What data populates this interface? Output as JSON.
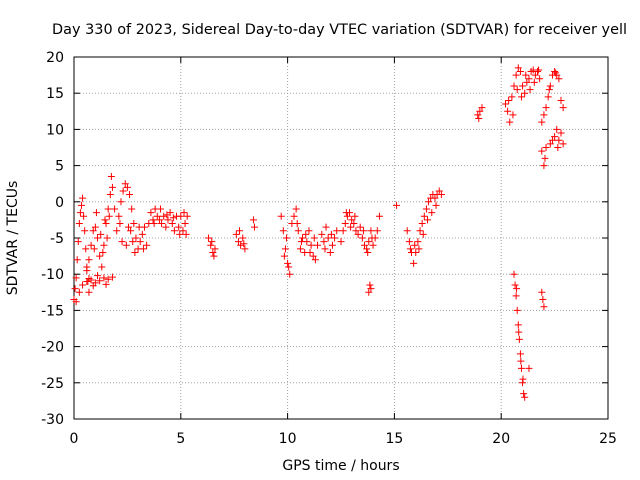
{
  "chart_data": {
    "type": "scatter",
    "title": "Day 330 of 2023, Sidereal Day-to-day VTEC variation (SDTVAR) for receiver yell",
    "xlabel": "GPS time / hours",
    "ylabel": "SDTVAR / TECUs",
    "xlim": [
      0,
      25
    ],
    "ylim": [
      -30,
      20
    ],
    "x_ticks": [
      0,
      5,
      10,
      15,
      20,
      25
    ],
    "y_ticks": [
      -30,
      -25,
      -20,
      -15,
      -10,
      -5,
      0,
      5,
      10,
      15,
      20
    ],
    "grid": true,
    "marker": "+",
    "color": "#ff0000",
    "segments": [
      {
        "name": "segment-01",
        "points": [
          [
            0.0,
            -13.5
          ],
          [
            0.05,
            -12.0
          ],
          [
            0.1,
            -10.5
          ],
          [
            0.15,
            -8.0
          ],
          [
            0.2,
            -5.5
          ],
          [
            0.25,
            -3.0
          ],
          [
            0.3,
            -1.5
          ],
          [
            0.35,
            -0.5
          ],
          [
            0.4,
            0.5
          ],
          [
            0.45,
            -2.0
          ],
          [
            0.5,
            -4.0
          ],
          [
            0.55,
            -6.5
          ],
          [
            0.6,
            -9.0
          ],
          [
            0.65,
            -11.0
          ],
          [
            0.7,
            -12.5
          ]
        ]
      },
      {
        "name": "segment-02",
        "points": [
          [
            0.1,
            -13.8
          ],
          [
            0.25,
            -12.5
          ],
          [
            0.4,
            -11.5
          ],
          [
            0.6,
            -11.0
          ],
          [
            0.8,
            -10.8
          ],
          [
            1.0,
            -11.2
          ],
          [
            1.2,
            -10.9
          ],
          [
            1.4,
            -10.5
          ],
          [
            1.6,
            -10.7
          ],
          [
            1.8,
            -10.4
          ],
          [
            1.5,
            -11.4
          ],
          [
            1.1,
            -10.2
          ],
          [
            0.9,
            -11.6
          ],
          [
            0.7,
            -10.6
          ]
        ]
      },
      {
        "name": "segment-03",
        "points": [
          [
            0.6,
            -9.5
          ],
          [
            0.7,
            -8.0
          ],
          [
            0.8,
            -6.0
          ],
          [
            0.9,
            -4.0
          ],
          [
            1.0,
            -3.5
          ],
          [
            1.1,
            -5.0
          ],
          [
            1.2,
            -7.5
          ],
          [
            1.3,
            -9.0
          ],
          [
            1.4,
            -6.0
          ],
          [
            1.5,
            -3.0
          ],
          [
            1.6,
            -1.0
          ],
          [
            1.7,
            1.0
          ],
          [
            1.75,
            3.5
          ],
          [
            1.8,
            2.0
          ],
          [
            1.9,
            -1.0
          ],
          [
            1.45,
            -2.5
          ],
          [
            1.25,
            -4.5
          ],
          [
            1.05,
            -1.5
          ],
          [
            0.95,
            -6.5
          ],
          [
            1.35,
            -7.0
          ],
          [
            1.55,
            -5.0
          ],
          [
            1.65,
            -2.0
          ]
        ]
      },
      {
        "name": "segment-04",
        "points": [
          [
            2.0,
            -4.0
          ],
          [
            2.1,
            -2.0
          ],
          [
            2.2,
            0.0
          ],
          [
            2.3,
            1.5
          ],
          [
            2.4,
            2.5
          ],
          [
            2.5,
            2.0
          ],
          [
            2.6,
            1.0
          ],
          [
            2.7,
            -1.0
          ],
          [
            2.8,
            -3.0
          ],
          [
            2.9,
            -5.0
          ],
          [
            3.0,
            -6.5
          ],
          [
            3.1,
            -5.5
          ],
          [
            3.2,
            -4.5
          ],
          [
            3.3,
            -3.5
          ],
          [
            3.4,
            -6.0
          ],
          [
            3.5,
            -3.0
          ],
          [
            2.25,
            -5.5
          ],
          [
            2.45,
            -6.0
          ],
          [
            2.65,
            -4.0
          ],
          [
            2.85,
            -7.0
          ],
          [
            2.15,
            -3.0
          ],
          [
            2.55,
            -3.5
          ],
          [
            2.75,
            -5.5
          ],
          [
            3.05,
            -3.5
          ],
          [
            3.25,
            -6.5
          ]
        ]
      },
      {
        "name": "segment-05",
        "points": [
          [
            3.6,
            -1.5
          ],
          [
            3.7,
            -2.5
          ],
          [
            3.8,
            -1.0
          ],
          [
            3.9,
            -2.0
          ],
          [
            4.0,
            -2.5
          ],
          [
            4.1,
            -3.0
          ],
          [
            4.2,
            -2.0
          ],
          [
            4.3,
            -3.5
          ],
          [
            4.4,
            -2.5
          ],
          [
            4.5,
            -1.5
          ],
          [
            4.6,
            -3.0
          ],
          [
            4.7,
            -4.0
          ],
          [
            4.8,
            -2.0
          ],
          [
            4.9,
            -3.5
          ],
          [
            5.0,
            -2.0
          ],
          [
            5.1,
            -4.0
          ],
          [
            5.2,
            -3.0
          ],
          [
            5.3,
            -2.0
          ],
          [
            3.75,
            -3.0
          ],
          [
            4.05,
            -1.0
          ],
          [
            4.35,
            -1.8
          ],
          [
            4.65,
            -2.2
          ],
          [
            4.95,
            -4.5
          ],
          [
            5.15,
            -1.5
          ],
          [
            5.25,
            -4.5
          ]
        ]
      },
      {
        "name": "segment-06",
        "points": [
          [
            6.3,
            -5.0
          ],
          [
            6.4,
            -6.0
          ],
          [
            6.5,
            -7.0
          ],
          [
            6.6,
            -6.5
          ],
          [
            6.45,
            -5.5
          ],
          [
            6.55,
            -7.5
          ]
        ]
      },
      {
        "name": "segment-07",
        "points": [
          [
            7.6,
            -4.5
          ],
          [
            7.7,
            -5.5
          ],
          [
            7.8,
            -6.0
          ],
          [
            7.9,
            -5.0
          ],
          [
            8.0,
            -6.5
          ],
          [
            7.75,
            -4.0
          ],
          [
            7.95,
            -5.8
          ]
        ]
      },
      {
        "name": "segment-08",
        "points": [
          [
            8.4,
            -2.5
          ],
          [
            8.45,
            -3.5
          ]
        ]
      },
      {
        "name": "segment-09",
        "points": [
          [
            9.7,
            -2.0
          ],
          [
            9.8,
            -4.0
          ],
          [
            9.9,
            -6.5
          ],
          [
            10.0,
            -8.5
          ],
          [
            10.1,
            -10.0
          ],
          [
            9.85,
            -7.5
          ],
          [
            9.95,
            -5.0
          ],
          [
            10.05,
            -9.0
          ]
        ]
      },
      {
        "name": "segment-10",
        "points": [
          [
            10.2,
            -3.0
          ],
          [
            10.3,
            -2.0
          ],
          [
            10.4,
            -1.0
          ],
          [
            10.5,
            -4.0
          ],
          [
            10.6,
            -6.5
          ],
          [
            10.7,
            -5.0
          ],
          [
            10.8,
            -7.0
          ],
          [
            10.9,
            -5.5
          ],
          [
            11.0,
            -4.0
          ],
          [
            11.1,
            -6.0
          ],
          [
            11.2,
            -7.5
          ],
          [
            11.3,
            -8.0
          ],
          [
            11.4,
            -6.0
          ],
          [
            10.45,
            -3.0
          ],
          [
            10.65,
            -5.5
          ],
          [
            10.85,
            -4.5
          ],
          [
            11.05,
            -7.0
          ],
          [
            11.25,
            -5.0
          ]
        ]
      },
      {
        "name": "segment-11",
        "points": [
          [
            11.6,
            -4.5
          ],
          [
            11.7,
            -5.5
          ],
          [
            11.8,
            -3.5
          ],
          [
            11.9,
            -5.0
          ],
          [
            12.0,
            -7.0
          ],
          [
            12.1,
            -6.0
          ],
          [
            12.2,
            -5.0
          ],
          [
            12.3,
            -4.0
          ],
          [
            12.5,
            -5.5
          ],
          [
            11.75,
            -6.5
          ],
          [
            12.05,
            -4.5
          ]
        ]
      },
      {
        "name": "segment-12",
        "points": [
          [
            12.6,
            -4.0
          ],
          [
            12.7,
            -3.0
          ],
          [
            12.8,
            -2.0
          ],
          [
            12.9,
            -1.5
          ],
          [
            13.0,
            -2.5
          ],
          [
            13.1,
            -3.0
          ],
          [
            13.2,
            -4.0
          ],
          [
            12.75,
            -1.5
          ],
          [
            12.95,
            -3.5
          ],
          [
            13.15,
            -2.0
          ]
        ]
      },
      {
        "name": "segment-13",
        "points": [
          [
            13.3,
            -4.5
          ],
          [
            13.4,
            -3.5
          ],
          [
            13.5,
            -5.0
          ],
          [
            13.6,
            -6.0
          ],
          [
            13.7,
            -6.5
          ],
          [
            13.8,
            -5.5
          ],
          [
            13.9,
            -4.0
          ],
          [
            14.0,
            -6.0
          ],
          [
            14.1,
            -5.0
          ],
          [
            14.2,
            -4.0
          ],
          [
            14.3,
            -2.0
          ],
          [
            13.55,
            -4.0
          ],
          [
            13.75,
            -7.0
          ],
          [
            13.95,
            -5.0
          ]
        ]
      },
      {
        "name": "segment-14",
        "points": [
          [
            13.8,
            -12.5
          ],
          [
            13.85,
            -11.5
          ],
          [
            13.9,
            -12.0
          ]
        ]
      },
      {
        "name": "segment-15",
        "points": [
          [
            15.1,
            -0.5
          ]
        ]
      },
      {
        "name": "segment-16",
        "points": [
          [
            15.6,
            -4.0
          ],
          [
            15.7,
            -5.5
          ],
          [
            15.8,
            -7.0
          ],
          [
            15.9,
            -8.5
          ],
          [
            16.0,
            -7.0
          ],
          [
            16.1,
            -5.5
          ],
          [
            16.2,
            -4.0
          ],
          [
            16.3,
            -3.0
          ],
          [
            16.4,
            -2.0
          ],
          [
            16.5,
            -1.0
          ],
          [
            16.6,
            0.0
          ],
          [
            16.7,
            0.5
          ],
          [
            16.8,
            1.0
          ],
          [
            16.9,
            0.5
          ],
          [
            17.0,
            1.0
          ],
          [
            17.1,
            1.5
          ],
          [
            17.2,
            1.0
          ],
          [
            15.75,
            -6.5
          ],
          [
            15.95,
            -6.0
          ],
          [
            16.15,
            -6.5
          ],
          [
            16.35,
            -4.5
          ],
          [
            16.55,
            -2.5
          ],
          [
            16.75,
            -1.5
          ],
          [
            16.95,
            -0.5
          ]
        ]
      },
      {
        "name": "segment-17",
        "points": [
          [
            18.9,
            12.0
          ],
          [
            18.95,
            11.5
          ],
          [
            19.0,
            12.5
          ],
          [
            19.1,
            13.0
          ]
        ]
      },
      {
        "name": "segment-18",
        "points": [
          [
            20.2,
            13.5
          ],
          [
            20.3,
            12.5
          ],
          [
            20.4,
            11.0
          ],
          [
            20.5,
            14.5
          ],
          [
            20.6,
            16.0
          ],
          [
            20.7,
            17.5
          ],
          [
            20.8,
            18.5
          ],
          [
            20.9,
            18.0
          ],
          [
            21.0,
            16.0
          ],
          [
            21.1,
            15.0
          ],
          [
            21.2,
            16.5
          ],
          [
            21.3,
            17.0
          ],
          [
            21.4,
            18.0
          ],
          [
            21.5,
            18.2
          ],
          [
            21.6,
            17.5
          ],
          [
            21.7,
            18.0
          ],
          [
            21.8,
            17.0
          ],
          [
            20.35,
            14.0
          ],
          [
            20.55,
            12.0
          ],
          [
            20.75,
            15.5
          ],
          [
            20.95,
            14.5
          ],
          [
            21.15,
            17.5
          ],
          [
            21.35,
            15.5
          ],
          [
            21.55,
            16.5
          ],
          [
            21.75,
            18.2
          ]
        ]
      },
      {
        "name": "segment-19",
        "points": [
          [
            21.9,
            11.0
          ],
          [
            22.0,
            12.0
          ],
          [
            22.1,
            13.0
          ],
          [
            22.2,
            14.5
          ],
          [
            22.3,
            16.0
          ],
          [
            22.4,
            17.5
          ],
          [
            22.5,
            18.0
          ],
          [
            22.6,
            17.5
          ],
          [
            22.7,
            17.0
          ],
          [
            22.8,
            14.0
          ],
          [
            22.9,
            13.0
          ],
          [
            22.25,
            15.5
          ],
          [
            22.55,
            17.8
          ]
        ]
      },
      {
        "name": "segment-20",
        "points": [
          [
            21.9,
            7.0
          ],
          [
            22.0,
            5.0
          ],
          [
            22.05,
            6.0
          ],
          [
            22.1,
            7.5
          ],
          [
            22.3,
            8.0
          ],
          [
            22.5,
            9.0
          ],
          [
            22.6,
            10.0
          ],
          [
            22.7,
            8.5
          ],
          [
            22.8,
            9.5
          ],
          [
            22.9,
            8.0
          ],
          [
            22.4,
            8.5
          ],
          [
            22.65,
            7.5
          ]
        ]
      },
      {
        "name": "segment-21",
        "points": [
          [
            20.6,
            -10.0
          ],
          [
            20.65,
            -11.5
          ],
          [
            20.7,
            -13.0
          ],
          [
            20.75,
            -15.0
          ],
          [
            20.8,
            -17.0
          ],
          [
            20.85,
            -19.0
          ],
          [
            20.9,
            -21.0
          ],
          [
            20.95,
            -23.0
          ],
          [
            21.0,
            -25.0
          ],
          [
            21.05,
            -26.5
          ],
          [
            21.1,
            -27.0
          ],
          [
            20.72,
            -12.0
          ],
          [
            20.82,
            -18.0
          ],
          [
            20.92,
            -22.0
          ],
          [
            21.02,
            -24.5
          ],
          [
            21.3,
            -23.0
          ]
        ]
      },
      {
        "name": "segment-22",
        "points": [
          [
            21.9,
            -12.5
          ],
          [
            21.95,
            -13.5
          ],
          [
            22.0,
            -14.5
          ]
        ]
      }
    ]
  }
}
